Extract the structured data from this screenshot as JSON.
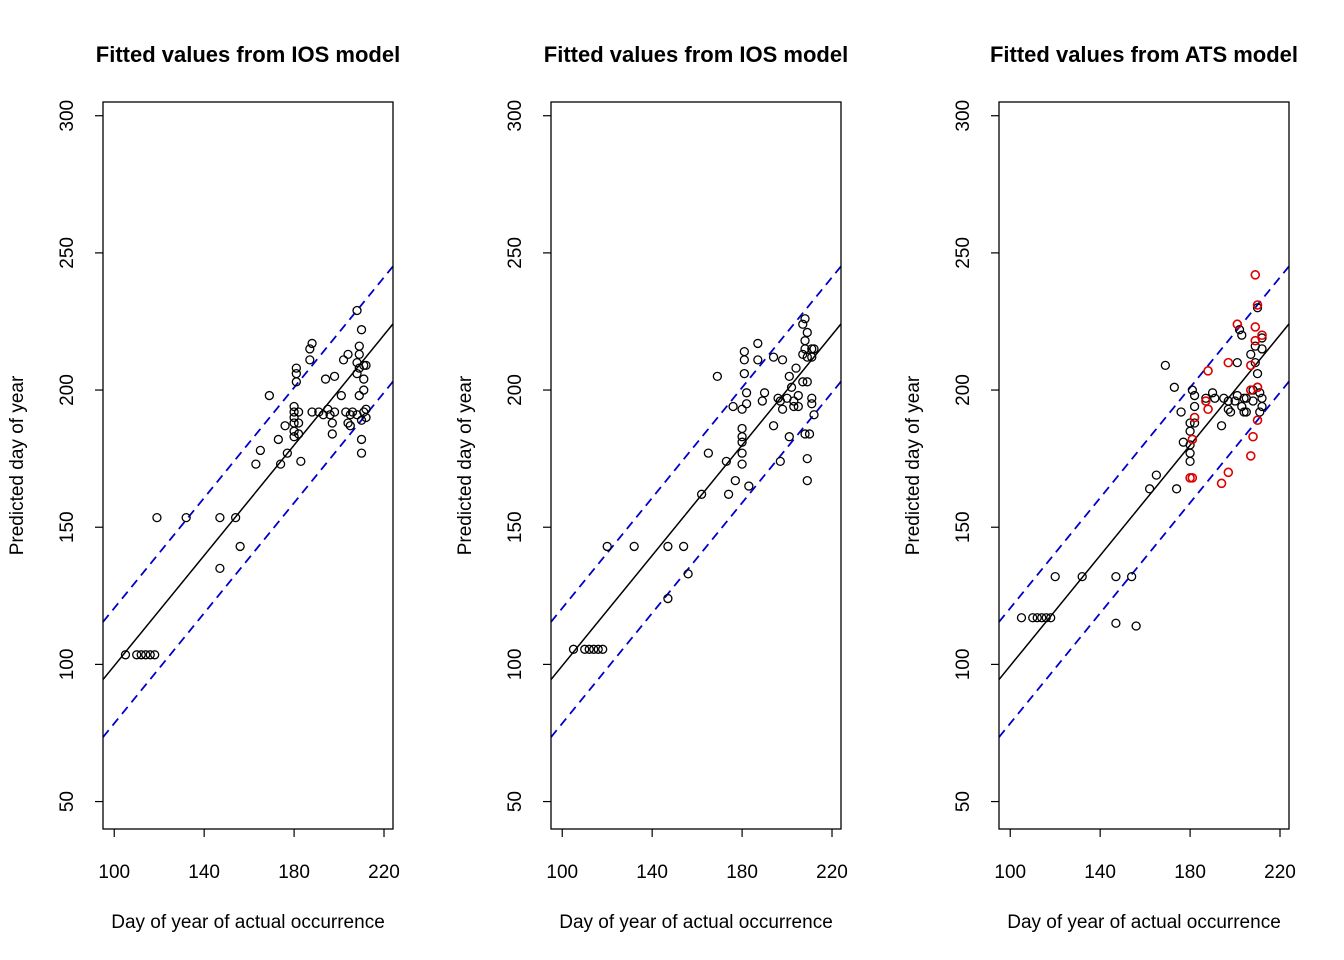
{
  "colors": {
    "refline": "#0000cc",
    "highlight": "#dd0000",
    "default": "#000000"
  },
  "chart_data": [
    {
      "type": "scatter",
      "title": "Fitted values from IOS model",
      "xlabel": "Day of year of actual occurrence",
      "ylabel": "Predicted day of year",
      "xlim": [
        95,
        224
      ],
      "ylim": [
        40,
        305
      ],
      "xticks": [
        100,
        140,
        180,
        220
      ],
      "yticks": [
        50,
        100,
        150,
        200,
        250,
        300
      ],
      "xtick_labels": [
        "100",
        "140",
        "180",
        "220"
      ],
      "ytick_labels": [
        "50",
        "100",
        "150",
        "200",
        "250",
        "300"
      ],
      "fit_line": {
        "intercept": -1,
        "slope": 1.005
      },
      "band_offset": 21,
      "points": [
        [
          105,
          103.5
        ],
        [
          110,
          103.5
        ],
        [
          112,
          103.5
        ],
        [
          114,
          103.5
        ],
        [
          116,
          103.5
        ],
        [
          118,
          103.5
        ],
        [
          119,
          153.5
        ],
        [
          132,
          153.5
        ],
        [
          147,
          153.5
        ],
        [
          154,
          153.5
        ],
        [
          147,
          135
        ],
        [
          156,
          143
        ],
        [
          163,
          173
        ],
        [
          165,
          178
        ],
        [
          169,
          198
        ],
        [
          173,
          182
        ],
        [
          174,
          173
        ],
        [
          176,
          187
        ],
        [
          177,
          177
        ],
        [
          180,
          183
        ],
        [
          180,
          185
        ],
        [
          180,
          188
        ],
        [
          180,
          190
        ],
        [
          180,
          192
        ],
        [
          180,
          194
        ],
        [
          181,
          203
        ],
        [
          181,
          206
        ],
        [
          181,
          208
        ],
        [
          182,
          184
        ],
        [
          182,
          188
        ],
        [
          182,
          192
        ],
        [
          183,
          174
        ],
        [
          187,
          211
        ],
        [
          187,
          215
        ],
        [
          188,
          217
        ],
        [
          188,
          192
        ],
        [
          191,
          192
        ],
        [
          193,
          191
        ],
        [
          194,
          204
        ],
        [
          195,
          193
        ],
        [
          196,
          191
        ],
        [
          197,
          184
        ],
        [
          197,
          188
        ],
        [
          198,
          205
        ],
        [
          198,
          192
        ],
        [
          201,
          198
        ],
        [
          202,
          211
        ],
        [
          203,
          192
        ],
        [
          204,
          213
        ],
        [
          204,
          188
        ],
        [
          205,
          191
        ],
        [
          205,
          187
        ],
        [
          206,
          192
        ],
        [
          208,
          229
        ],
        [
          208,
          210
        ],
        [
          208,
          206
        ],
        [
          208,
          191
        ],
        [
          209,
          216
        ],
        [
          209,
          213
        ],
        [
          209,
          208
        ],
        [
          209,
          198
        ],
        [
          210,
          222
        ],
        [
          210,
          189
        ],
        [
          210,
          182
        ],
        [
          210,
          177
        ],
        [
          211,
          204
        ],
        [
          211,
          200
        ],
        [
          211,
          209
        ],
        [
          211,
          192
        ],
        [
          212,
          209
        ],
        [
          212,
          193
        ],
        [
          212,
          190
        ]
      ],
      "highlighted": []
    },
    {
      "type": "scatter",
      "title": "Fitted values from IOS model",
      "xlabel": "Day of year of actual occurrence",
      "ylabel": "Predicted day of year",
      "xlim": [
        95,
        224
      ],
      "ylim": [
        40,
        305
      ],
      "xticks": [
        100,
        140,
        180,
        220
      ],
      "yticks": [
        50,
        100,
        150,
        200,
        250,
        300
      ],
      "xtick_labels": [
        "100",
        "140",
        "180",
        "220"
      ],
      "ytick_labels": [
        "50",
        "100",
        "150",
        "200",
        "250",
        "300"
      ],
      "fit_line": {
        "intercept": -1,
        "slope": 1.005
      },
      "band_offset": 21,
      "points": [
        [
          105,
          105.5
        ],
        [
          110,
          105.5
        ],
        [
          112,
          105.5
        ],
        [
          114,
          105.5
        ],
        [
          116,
          105.5
        ],
        [
          118,
          105.5
        ],
        [
          120,
          143
        ],
        [
          132,
          143
        ],
        [
          147,
          143
        ],
        [
          154,
          143
        ],
        [
          147,
          124
        ],
        [
          156,
          133
        ],
        [
          162,
          162
        ],
        [
          165,
          177
        ],
        [
          169,
          205
        ],
        [
          173,
          174
        ],
        [
          174,
          162
        ],
        [
          176,
          194
        ],
        [
          177,
          167
        ],
        [
          180,
          173
        ],
        [
          180,
          177
        ],
        [
          180,
          181
        ],
        [
          180,
          183
        ],
        [
          180,
          186
        ],
        [
          180,
          193
        ],
        [
          181,
          206
        ],
        [
          181,
          211
        ],
        [
          181,
          214
        ],
        [
          182,
          195
        ],
        [
          182,
          199
        ],
        [
          183,
          165
        ],
        [
          187,
          211
        ],
        [
          187,
          217
        ],
        [
          189,
          196
        ],
        [
          190,
          199
        ],
        [
          194,
          212
        ],
        [
          194,
          187
        ],
        [
          196,
          197
        ],
        [
          197,
          196
        ],
        [
          197,
          174
        ],
        [
          198,
          211
        ],
        [
          198,
          193
        ],
        [
          200,
          197
        ],
        [
          201,
          205
        ],
        [
          201,
          183
        ],
        [
          202,
          201
        ],
        [
          203,
          196
        ],
        [
          203,
          194
        ],
        [
          204,
          208
        ],
        [
          205,
          198
        ],
        [
          205,
          194
        ],
        [
          207,
          224
        ],
        [
          207,
          213
        ],
        [
          207,
          203
        ],
        [
          208,
          226
        ],
        [
          208,
          218
        ],
        [
          208,
          215
        ],
        [
          208,
          184
        ],
        [
          209,
          221
        ],
        [
          209,
          212
        ],
        [
          209,
          203
        ],
        [
          209,
          175
        ],
        [
          209,
          167
        ],
        [
          210,
          184
        ],
        [
          211,
          215
        ],
        [
          211,
          212
        ],
        [
          211,
          197
        ],
        [
          211,
          195
        ],
        [
          212,
          215
        ],
        [
          212,
          191
        ]
      ],
      "highlighted": []
    },
    {
      "type": "scatter",
      "title": "Fitted values from ATS model",
      "xlabel": "Day of year of actual occurrence",
      "ylabel": "Predicted day of year",
      "xlim": [
        95,
        224
      ],
      "ylim": [
        40,
        305
      ],
      "xticks": [
        100,
        140,
        180,
        220
      ],
      "yticks": [
        50,
        100,
        150,
        200,
        250,
        300
      ],
      "xtick_labels": [
        "100",
        "140",
        "180",
        "220"
      ],
      "ytick_labels": [
        "50",
        "100",
        "150",
        "200",
        "250",
        "300"
      ],
      "fit_line": {
        "intercept": -1,
        "slope": 1.005
      },
      "band_offset": 21,
      "points": [
        [
          105,
          117
        ],
        [
          110,
          117
        ],
        [
          112,
          117
        ],
        [
          114,
          117
        ],
        [
          116,
          117
        ],
        [
          118,
          117
        ],
        [
          120,
          132
        ],
        [
          132,
          132
        ],
        [
          147,
          132
        ],
        [
          154,
          132
        ],
        [
          147,
          115
        ],
        [
          156,
          114
        ],
        [
          162,
          164
        ],
        [
          165,
          169
        ],
        [
          169,
          209
        ],
        [
          173,
          201
        ],
        [
          174,
          164
        ],
        [
          176,
          192
        ],
        [
          177,
          181
        ],
        [
          180,
          174
        ],
        [
          180,
          177
        ],
        [
          180,
          180
        ],
        [
          180,
          185
        ],
        [
          180,
          188
        ],
        [
          181,
          200
        ],
        [
          182,
          198
        ],
        [
          182,
          194
        ],
        [
          182,
          190
        ],
        [
          182,
          188
        ],
        [
          187,
          197
        ],
        [
          190,
          199
        ],
        [
          191,
          197
        ],
        [
          194,
          187
        ],
        [
          195,
          197
        ],
        [
          197,
          196
        ],
        [
          197,
          193
        ],
        [
          198,
          192
        ],
        [
          200,
          196
        ],
        [
          201,
          210
        ],
        [
          201,
          198
        ],
        [
          202,
          222
        ],
        [
          203,
          220
        ],
        [
          203,
          194
        ],
        [
          204,
          197
        ],
        [
          204,
          192
        ],
        [
          205,
          197
        ],
        [
          205,
          192
        ],
        [
          207,
          213
        ],
        [
          208,
          200
        ],
        [
          208,
          196
        ],
        [
          209,
          216
        ],
        [
          209,
          210
        ],
        [
          210,
          230
        ],
        [
          210,
          206
        ],
        [
          210,
          201
        ],
        [
          211,
          199
        ],
        [
          211,
          192
        ],
        [
          212,
          219
        ],
        [
          212,
          215
        ],
        [
          212,
          197
        ],
        [
          212,
          194
        ]
      ],
      "highlighted": [
        [
          180,
          168
        ],
        [
          181,
          168
        ],
        [
          181,
          182
        ],
        [
          182,
          190
        ],
        [
          187,
          196
        ],
        [
          188,
          207
        ],
        [
          188,
          193
        ],
        [
          194,
          166
        ],
        [
          197,
          170
        ],
        [
          197,
          210
        ],
        [
          201,
          224
        ],
        [
          207,
          209
        ],
        [
          207,
          200
        ],
        [
          207,
          176
        ],
        [
          208,
          183
        ],
        [
          209,
          242
        ],
        [
          209,
          223
        ],
        [
          209,
          218
        ],
        [
          210,
          231
        ],
        [
          210,
          189
        ],
        [
          210,
          201
        ],
        [
          212,
          220
        ]
      ]
    }
  ]
}
